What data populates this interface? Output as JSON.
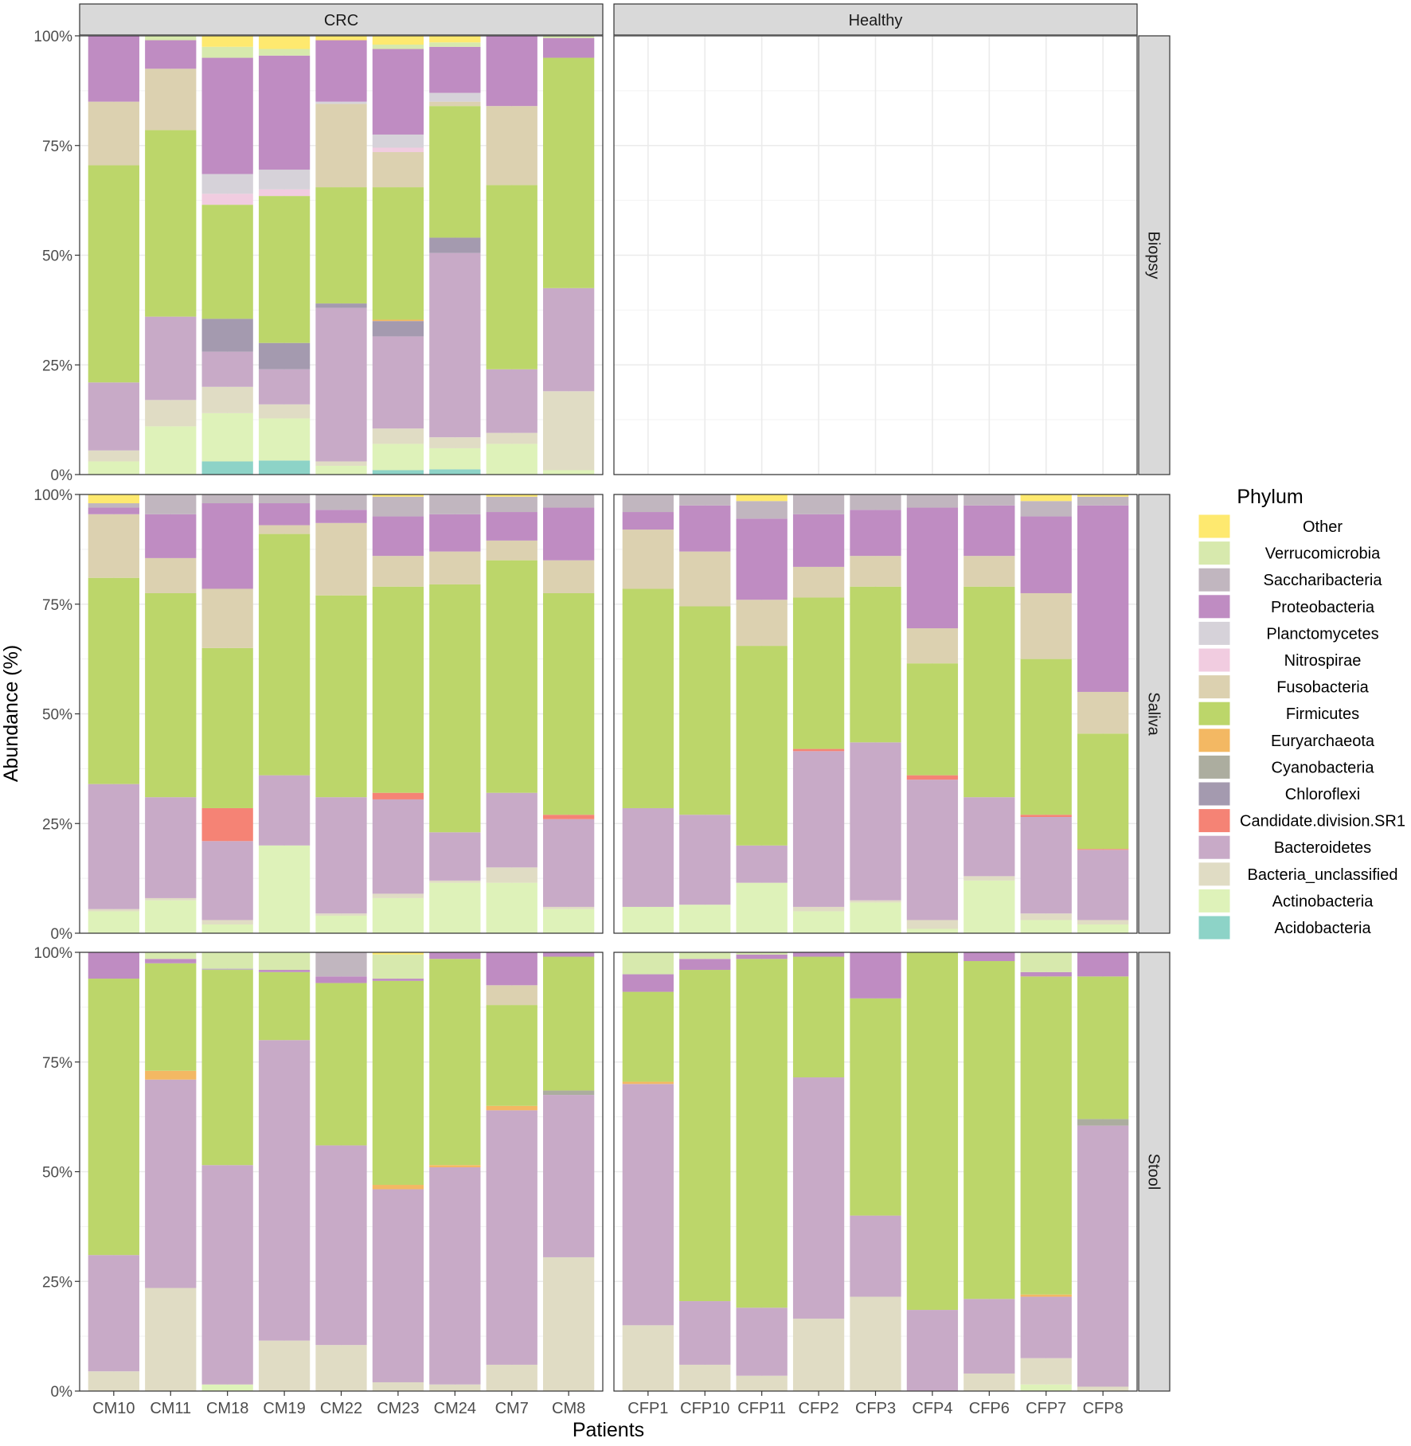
{
  "chart_data": {
    "type": "bar",
    "stacked": true,
    "title": "",
    "xlabel": "Patients",
    "ylabel": "Abundance (%)",
    "ylim": [
      0,
      100
    ],
    "yticks": [
      0,
      25,
      50,
      75,
      100
    ],
    "ytick_labels": [
      "0%",
      "25%",
      "50%",
      "75%",
      "100%"
    ],
    "grid": true,
    "legend_position": "right",
    "facet_cols": [
      "CRC",
      "Healthy"
    ],
    "facet_rows": [
      "Biopsy",
      "Saliva",
      "Stool"
    ],
    "categories": {
      "CRC": [
        "CM10",
        "CM11",
        "CM18",
        "CM19",
        "CM22",
        "CM23",
        "CM24",
        "CM7",
        "CM8"
      ],
      "Healthy": [
        "CFP1",
        "CFP10",
        "CFP11",
        "CFP2",
        "CFP3",
        "CFP4",
        "CFP6",
        "CFP7",
        "CFP8"
      ]
    },
    "legend": {
      "title": "Phylum",
      "entries": [
        {
          "name": "Other",
          "color": "#FEE96F"
        },
        {
          "name": "Verrucomicrobia",
          "color": "#D7E9AD"
        },
        {
          "name": "Saccharibacteria",
          "color": "#C1B6BF"
        },
        {
          "name": "Proteobacteria",
          "color": "#BF8CC2"
        },
        {
          "name": "Planctomycetes",
          "color": "#D6D2D9"
        },
        {
          "name": "Nitrospirae",
          "color": "#F1CCE0"
        },
        {
          "name": "Fusobacteria",
          "color": "#DCD1B0"
        },
        {
          "name": "Firmicutes",
          "color": "#BCD66A"
        },
        {
          "name": "Euryarchaeota",
          "color": "#F3B863"
        },
        {
          "name": "Cyanobacteria",
          "color": "#ACAD9F"
        },
        {
          "name": "Chloroflexi",
          "color": "#A49AAF"
        },
        {
          "name": "Candidate.division.SR1",
          "color": "#F58375"
        },
        {
          "name": "Bacteroidetes",
          "color": "#C8AAC7"
        },
        {
          "name": "Bacteria_unclassified",
          "color": "#E0DCC4"
        },
        {
          "name": "Actinobacteria",
          "color": "#DEF2B9"
        },
        {
          "name": "Acidobacteria",
          "color": "#8DD3C7"
        }
      ]
    },
    "panels": [
      {
        "col": "CRC",
        "row": "Biopsy",
        "bars": [
          {
            "patient": "CM10",
            "values": {
              "Actinobacteria": 3,
              "Bacteria_unclassified": 2.5,
              "Bacteroidetes": 15.5,
              "Firmicutes": 49.5,
              "Fusobacteria": 14.5,
              "Proteobacteria": 15
            }
          },
          {
            "patient": "CM11",
            "values": {
              "Actinobacteria": 11,
              "Bacteria_unclassified": 6,
              "Bacteroidetes": 19,
              "Firmicutes": 42.5,
              "Fusobacteria": 14,
              "Proteobacteria": 6.5,
              "Verrucomicrobia": 1
            }
          },
          {
            "patient": "CM18",
            "values": {
              "Acidobacteria": 3,
              "Actinobacteria": 11,
              "Bacteria_unclassified": 6,
              "Bacteroidetes": 8,
              "Chloroflexi": 7.5,
              "Firmicutes": 26,
              "Nitrospirae": 2.5,
              "Planctomycetes": 4.5,
              "Proteobacteria": 26.5,
              "Verrucomicrobia": 2.5,
              "Other": 2.5
            }
          },
          {
            "patient": "CM19",
            "values": {
              "Acidobacteria": 3.2,
              "Actinobacteria": 9.6,
              "Bacteria_unclassified": 3.2,
              "Bacteroidetes": 8,
              "Chloroflexi": 6,
              "Firmicutes": 33.5,
              "Nitrospirae": 1.5,
              "Planctomycetes": 4.5,
              "Proteobacteria": 26,
              "Verrucomicrobia": 1.5,
              "Other": 3
            }
          },
          {
            "patient": "CM22",
            "values": {
              "Actinobacteria": 2,
              "Bacteria_unclassified": 1,
              "Bacteroidetes": 35,
              "Chloroflexi": 1,
              "Firmicutes": 26.5,
              "Fusobacteria": 19,
              "Planctomycetes": 0.5,
              "Proteobacteria": 14,
              "Other": 1
            }
          },
          {
            "patient": "CM23",
            "values": {
              "Acidobacteria": 1,
              "Actinobacteria": 6,
              "Bacteria_unclassified": 3.5,
              "Bacteroidetes": 21,
              "Chloroflexi": 3.5,
              "Euryarchaeota": 0.3,
              "Firmicutes": 30.2,
              "Fusobacteria": 8,
              "Nitrospirae": 1,
              "Planctomycetes": 3,
              "Proteobacteria": 19.5,
              "Verrucomicrobia": 1,
              "Other": 2
            }
          },
          {
            "patient": "CM24",
            "values": {
              "Acidobacteria": 1.2,
              "Actinobacteria": 4.8,
              "Bacteria_unclassified": 2.5,
              "Bacteroidetes": 42,
              "Chloroflexi": 3.5,
              "Firmicutes": 30,
              "Fusobacteria": 1,
              "Planctomycetes": 2,
              "Proteobacteria": 10.5,
              "Verrucomicrobia": 1,
              "Other": 1.5
            }
          },
          {
            "patient": "CM7",
            "values": {
              "Actinobacteria": 7,
              "Bacteria_unclassified": 2.5,
              "Bacteroidetes": 14.5,
              "Firmicutes": 42,
              "Fusobacteria": 18,
              "Proteobacteria": 16
            }
          },
          {
            "patient": "CM8",
            "values": {
              "Actinobacteria": 1,
              "Bacteria_unclassified": 18,
              "Bacteroidetes": 23.5,
              "Firmicutes": 52.5,
              "Proteobacteria": 4.5,
              "Verrucomicrobia": 0.5
            }
          }
        ]
      },
      {
        "col": "Healthy",
        "row": "Biopsy",
        "bars": []
      },
      {
        "col": "CRC",
        "row": "Saliva",
        "bars": [
          {
            "patient": "CM10",
            "values": {
              "Actinobacteria": 5,
              "Bacteria_unclassified": 0.5,
              "Bacteroidetes": 28.5,
              "Firmicutes": 47,
              "Fusobacteria": 14.5,
              "Proteobacteria": 1.5,
              "Saccharibacteria": 1,
              "Other": 2
            }
          },
          {
            "patient": "CM11",
            "values": {
              "Actinobacteria": 7.5,
              "Bacteria_unclassified": 0.5,
              "Bacteroidetes": 23,
              "Firmicutes": 46.5,
              "Fusobacteria": 8,
              "Proteobacteria": 10,
              "Saccharibacteria": 4.5
            }
          },
          {
            "patient": "CM18",
            "values": {
              "Actinobacteria": 2,
              "Bacteria_unclassified": 1,
              "Bacteroidetes": 18,
              "Candidate.division.SR1": 7.5,
              "Firmicutes": 36.5,
              "Fusobacteria": 13.5,
              "Proteobacteria": 19.5,
              "Saccharibacteria": 2
            }
          },
          {
            "patient": "CM19",
            "values": {
              "Actinobacteria": 20,
              "Bacteroidetes": 16,
              "Firmicutes": 55,
              "Fusobacteria": 2,
              "Proteobacteria": 5,
              "Saccharibacteria": 2
            }
          },
          {
            "patient": "CM22",
            "values": {
              "Actinobacteria": 4,
              "Bacteria_unclassified": 0.5,
              "Bacteroidetes": 26.5,
              "Firmicutes": 46,
              "Fusobacteria": 16.5,
              "Proteobacteria": 3,
              "Saccharibacteria": 3.5
            }
          },
          {
            "patient": "CM23",
            "values": {
              "Actinobacteria": 8,
              "Bacteria_unclassified": 1,
              "Bacteroidetes": 21.5,
              "Candidate.division.SR1": 1.5,
              "Firmicutes": 47,
              "Fusobacteria": 7,
              "Proteobacteria": 9,
              "Saccharibacteria": 4.5,
              "Other": 0.5
            }
          },
          {
            "patient": "CM24",
            "values": {
              "Actinobacteria": 11.5,
              "Bacteria_unclassified": 0.5,
              "Bacteroidetes": 11,
              "Firmicutes": 56.5,
              "Fusobacteria": 7.5,
              "Proteobacteria": 8.5,
              "Saccharibacteria": 4.5
            }
          },
          {
            "patient": "CM7",
            "values": {
              "Actinobacteria": 11.5,
              "Bacteria_unclassified": 3.5,
              "Bacteroidetes": 17,
              "Firmicutes": 53,
              "Fusobacteria": 4.5,
              "Proteobacteria": 6.5,
              "Saccharibacteria": 3.5,
              "Other": 0.5
            }
          },
          {
            "patient": "CM8",
            "values": {
              "Actinobacteria": 5.5,
              "Bacteria_unclassified": 0.5,
              "Bacteroidetes": 20,
              "Candidate.division.SR1": 1,
              "Firmicutes": 50.5,
              "Fusobacteria": 7.5,
              "Proteobacteria": 12,
              "Saccharibacteria": 3
            }
          }
        ]
      },
      {
        "col": "Healthy",
        "row": "Saliva",
        "bars": [
          {
            "patient": "CFP1",
            "values": {
              "Actinobacteria": 6,
              "Bacteroidetes": 22.5,
              "Firmicutes": 50,
              "Fusobacteria": 13.5,
              "Proteobacteria": 4,
              "Saccharibacteria": 4
            }
          },
          {
            "patient": "CFP10",
            "values": {
              "Actinobacteria": 6.5,
              "Bacteroidetes": 20.5,
              "Firmicutes": 47.5,
              "Fusobacteria": 12.5,
              "Proteobacteria": 10.5,
              "Saccharibacteria": 2.5
            }
          },
          {
            "patient": "CFP11",
            "values": {
              "Actinobacteria": 11.5,
              "Bacteroidetes": 8.5,
              "Firmicutes": 45.5,
              "Fusobacteria": 10.5,
              "Proteobacteria": 18.5,
              "Saccharibacteria": 4,
              "Other": 1.5
            }
          },
          {
            "patient": "CFP2",
            "values": {
              "Actinobacteria": 5,
              "Bacteria_unclassified": 1,
              "Bacteroidetes": 35.5,
              "Candidate.division.SR1": 0.5,
              "Firmicutes": 34.5,
              "Fusobacteria": 7,
              "Proteobacteria": 12,
              "Saccharibacteria": 4.5
            }
          },
          {
            "patient": "CFP3",
            "values": {
              "Actinobacteria": 7,
              "Bacteria_unclassified": 0.5,
              "Bacteroidetes": 36,
              "Firmicutes": 35.5,
              "Fusobacteria": 7,
              "Proteobacteria": 10.5,
              "Saccharibacteria": 3.5
            }
          },
          {
            "patient": "CFP4",
            "values": {
              "Actinobacteria": 1,
              "Bacteria_unclassified": 2,
              "Bacteroidetes": 32,
              "Candidate.division.SR1": 1,
              "Firmicutes": 25.5,
              "Fusobacteria": 8,
              "Proteobacteria": 27.5,
              "Saccharibacteria": 3
            }
          },
          {
            "patient": "CFP6",
            "values": {
              "Actinobacteria": 12,
              "Bacteria_unclassified": 1,
              "Bacteroidetes": 18,
              "Firmicutes": 48,
              "Fusobacteria": 7,
              "Proteobacteria": 11.5,
              "Saccharibacteria": 2.5
            }
          },
          {
            "patient": "CFP7",
            "values": {
              "Actinobacteria": 3,
              "Bacteria_unclassified": 1.5,
              "Bacteroidetes": 22,
              "Candidate.division.SR1": 0.5,
              "Firmicutes": 35.5,
              "Fusobacteria": 15,
              "Proteobacteria": 17.5,
              "Saccharibacteria": 3.5,
              "Other": 1.5
            }
          },
          {
            "patient": "CFP8",
            "values": {
              "Actinobacteria": 2,
              "Bacteria_unclassified": 1,
              "Bacteroidetes": 16,
              "Candidate.division.SR1": 0.2,
              "Firmicutes": 26.3,
              "Fusobacteria": 9.5,
              "Proteobacteria": 42.5,
              "Saccharibacteria": 2,
              "Other": 0.5
            }
          }
        ]
      },
      {
        "col": "CRC",
        "row": "Stool",
        "bars": [
          {
            "patient": "CM10",
            "values": {
              "Bacteria_unclassified": 4.5,
              "Bacteroidetes": 26.5,
              "Firmicutes": 63,
              "Proteobacteria": 6
            }
          },
          {
            "patient": "CM11",
            "values": {
              "Bacteria_unclassified": 23.5,
              "Bacteroidetes": 47.5,
              "Euryarchaeota": 2,
              "Firmicutes": 24.5,
              "Proteobacteria": 1,
              "Verrucomicrobia": 1.5
            }
          },
          {
            "patient": "CM18",
            "values": {
              "Actinobacteria": 1.5,
              "Bacteroidetes": 50,
              "Firmicutes": 44.5,
              "Saccharibacteria": 0.3,
              "Verrucomicrobia": 3.7
            }
          },
          {
            "patient": "CM19",
            "values": {
              "Bacteria_unclassified": 11.5,
              "Bacteroidetes": 68.5,
              "Firmicutes": 15.5,
              "Proteobacteria": 0.5,
              "Verrucomicrobia": 4
            }
          },
          {
            "patient": "CM22",
            "values": {
              "Bacteria_unclassified": 10.5,
              "Bacteroidetes": 45.5,
              "Firmicutes": 37,
              "Proteobacteria": 1.5,
              "Saccharibacteria": 5.5
            }
          },
          {
            "patient": "CM23",
            "values": {
              "Bacteria_unclassified": 2,
              "Bacteroidetes": 44,
              "Euryarchaeota": 1,
              "Firmicutes": 46.5,
              "Proteobacteria": 0.5,
              "Verrucomicrobia": 5.5,
              "Other": 0.5
            }
          },
          {
            "patient": "CM24",
            "values": {
              "Bacteria_unclassified": 1.5,
              "Bacteroidetes": 49.5,
              "Euryarchaeota": 0.5,
              "Firmicutes": 47,
              "Proteobacteria": 1.5
            }
          },
          {
            "patient": "CM7",
            "values": {
              "Bacteria_unclassified": 6,
              "Bacteroidetes": 58,
              "Euryarchaeota": 1,
              "Firmicutes": 23,
              "Fusobacteria": 4.5,
              "Proteobacteria": 7.5
            }
          },
          {
            "patient": "CM8",
            "values": {
              "Bacteria_unclassified": 30.5,
              "Bacteroidetes": 37,
              "Cyanobacteria": 1,
              "Firmicutes": 30.5,
              "Proteobacteria": 1
            }
          }
        ]
      },
      {
        "col": "Healthy",
        "row": "Stool",
        "bars": [
          {
            "patient": "CFP1",
            "values": {
              "Bacteria_unclassified": 15,
              "Bacteroidetes": 55,
              "Euryarchaeota": 0.5,
              "Firmicutes": 20.5,
              "Proteobacteria": 4,
              "Verrucomicrobia": 5
            }
          },
          {
            "patient": "CFP10",
            "values": {
              "Bacteria_unclassified": 6,
              "Bacteroidetes": 14.5,
              "Firmicutes": 75.5,
              "Proteobacteria": 2.5,
              "Verrucomicrobia": 1.5
            }
          },
          {
            "patient": "CFP11",
            "values": {
              "Bacteria_unclassified": 3.5,
              "Bacteroidetes": 15.5,
              "Firmicutes": 79.5,
              "Proteobacteria": 1,
              "Verrucomicrobia": 0.5
            }
          },
          {
            "patient": "CFP2",
            "values": {
              "Bacteria_unclassified": 16.5,
              "Bacteroidetes": 55,
              "Firmicutes": 27.5,
              "Proteobacteria": 1
            }
          },
          {
            "patient": "CFP3",
            "values": {
              "Bacteria_unclassified": 21.5,
              "Bacteroidetes": 18.5,
              "Firmicutes": 49.5,
              "Proteobacteria": 10.5
            }
          },
          {
            "patient": "CFP4",
            "values": {
              "Bacteroidetes": 18.5,
              "Firmicutes": 81.5
            }
          },
          {
            "patient": "CFP6",
            "values": {
              "Bacteria_unclassified": 4,
              "Bacteroidetes": 17,
              "Firmicutes": 77,
              "Proteobacteria": 2
            }
          },
          {
            "patient": "CFP7",
            "values": {
              "Actinobacteria": 1.5,
              "Bacteria_unclassified": 6,
              "Bacteroidetes": 14,
              "Euryarchaeota": 0.5,
              "Firmicutes": 72.5,
              "Proteobacteria": 1,
              "Verrucomicrobia": 4.5
            }
          },
          {
            "patient": "CFP8",
            "values": {
              "Bacteria_unclassified": 1,
              "Bacteroidetes": 59.5,
              "Cyanobacteria": 1.5,
              "Firmicutes": 32.5,
              "Proteobacteria": 5.5
            }
          }
        ]
      }
    ]
  }
}
